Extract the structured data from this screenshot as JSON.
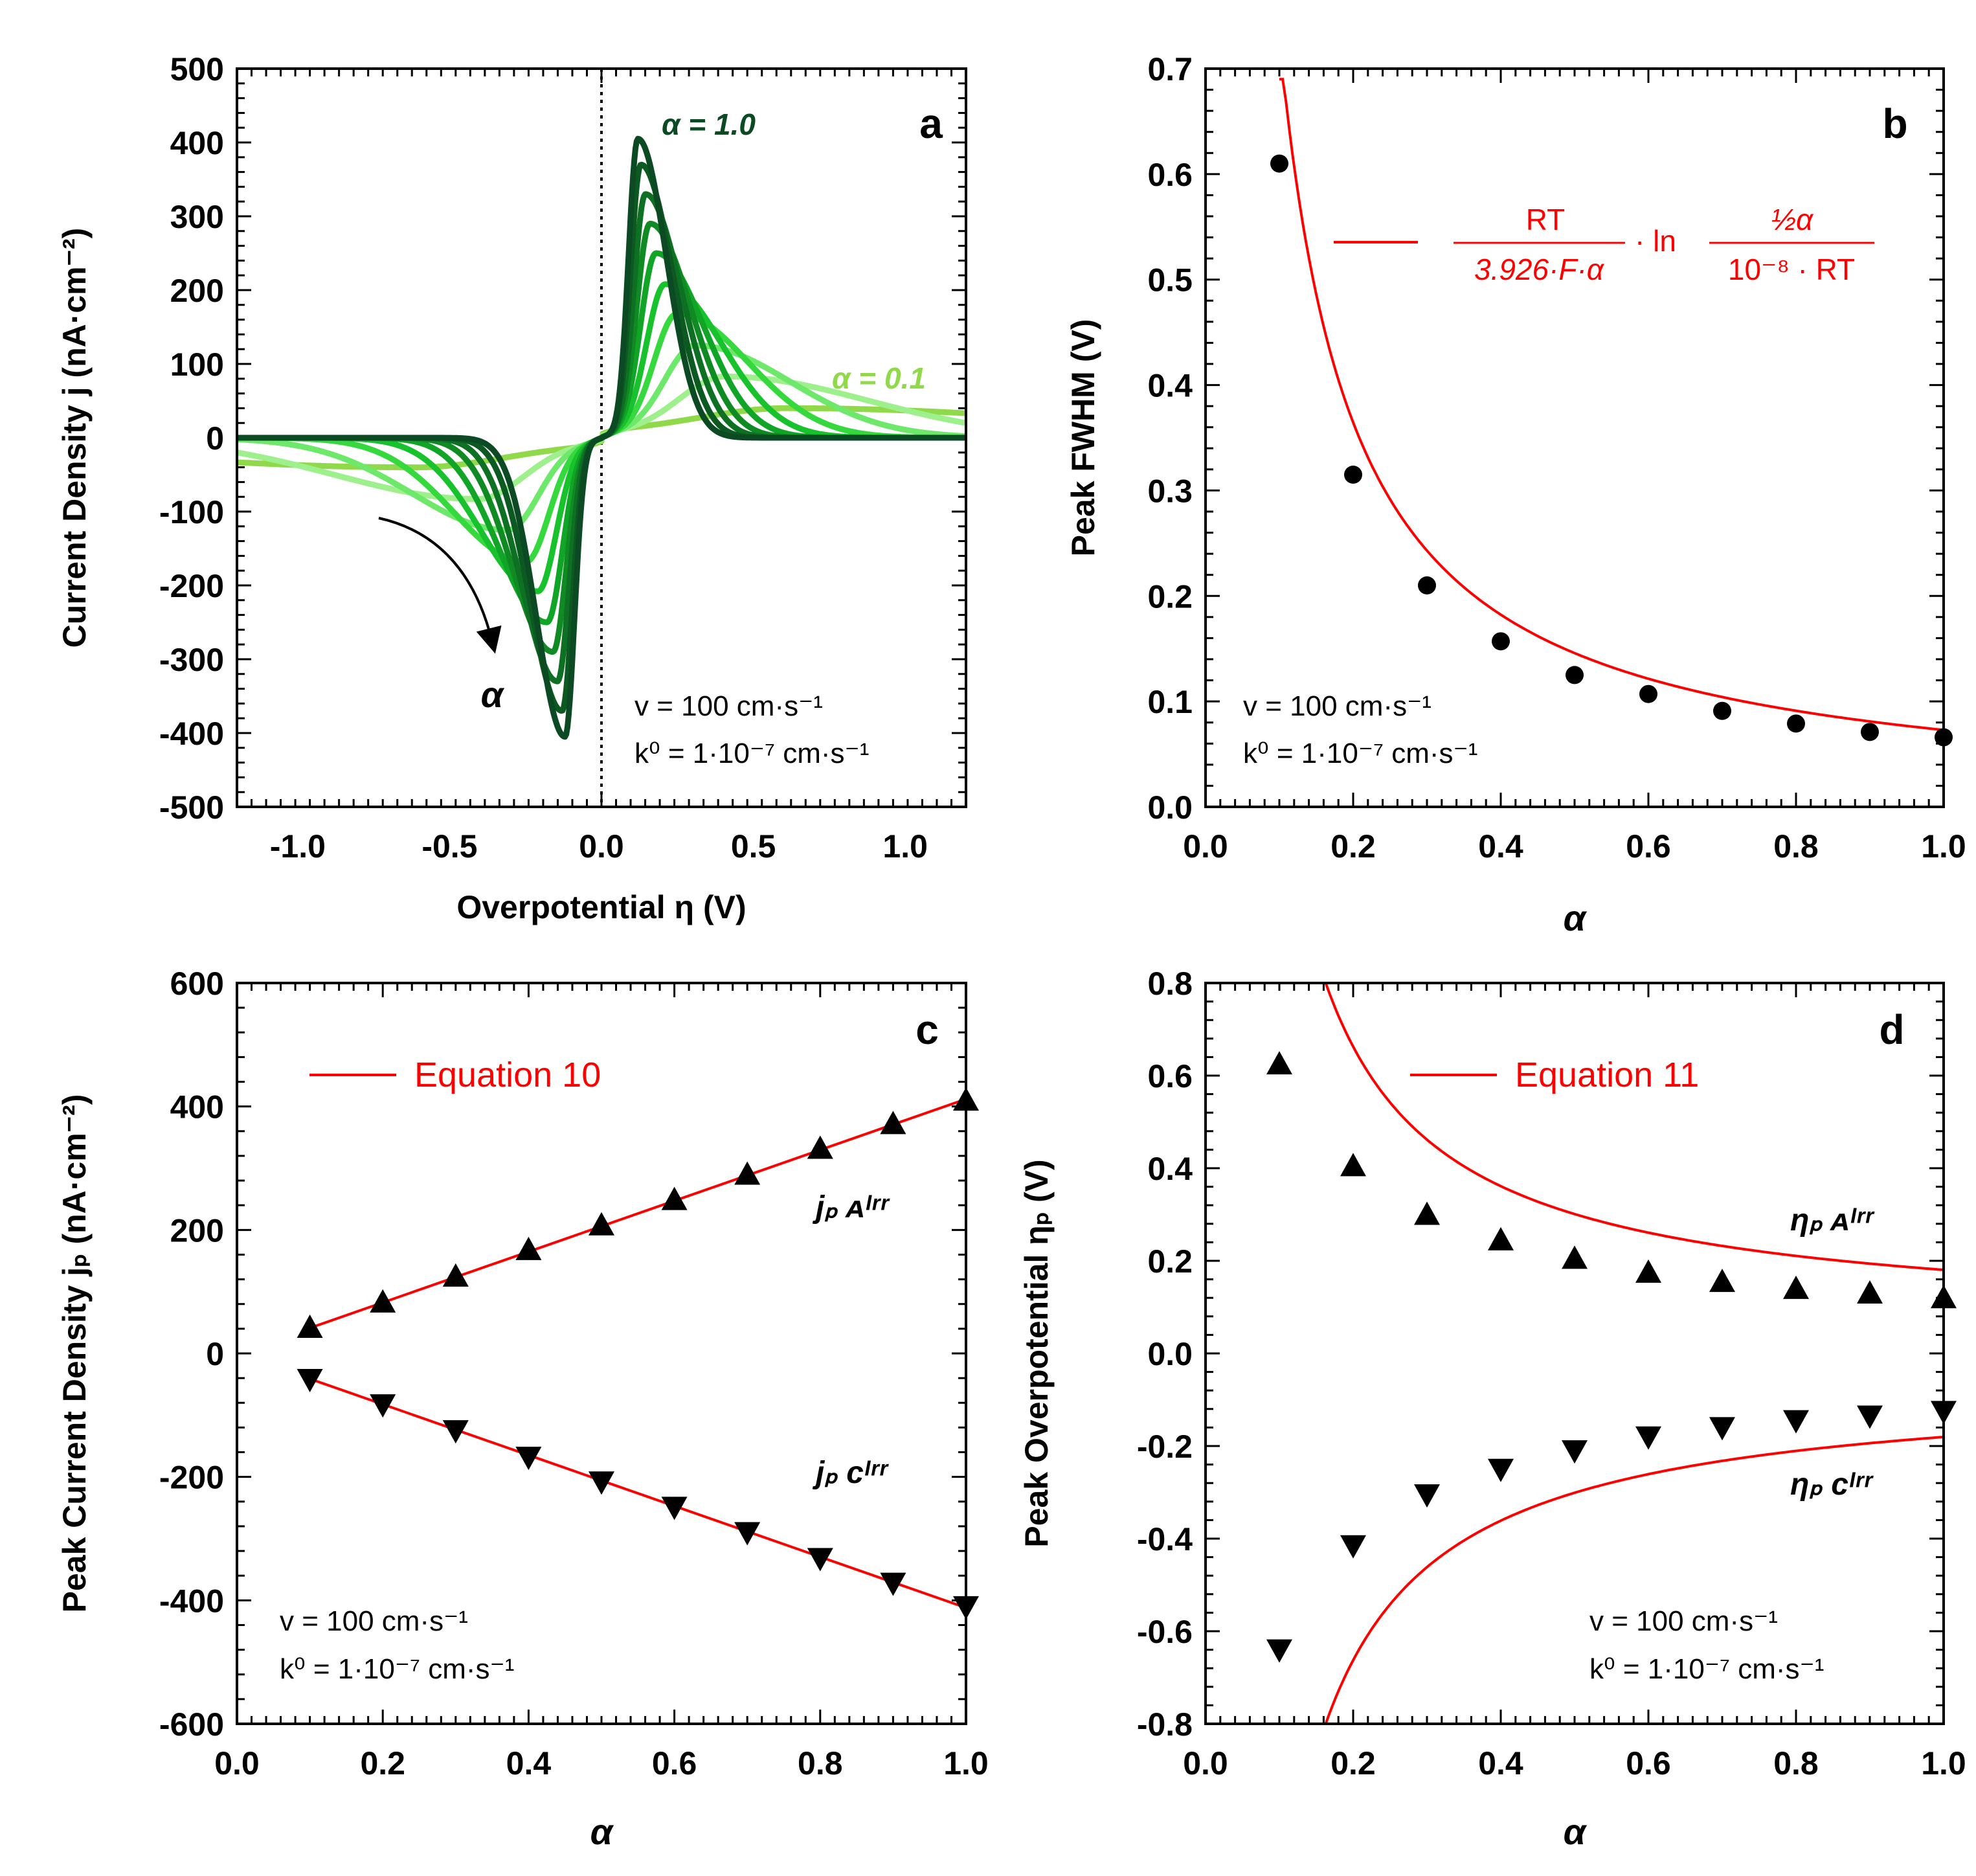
{
  "panels": {
    "a": {
      "letter": "a",
      "ylabel": "Current Density j (nA·cm⁻²)",
      "xlabel": "Overpotential η (V)",
      "note_v": "v = 100 cm·s⁻¹",
      "note_k": "k⁰ = 1·10⁻⁷  cm·s⁻¹",
      "label_hi": "α = 1.0",
      "label_lo": "α = 0.1",
      "arrow_label": "α",
      "hi_color": "#0b4a23",
      "lo_color": "#8fd94a"
    },
    "b": {
      "letter": "b",
      "ylabel": "Peak FWHM (V)",
      "xlabel": "α",
      "note_v": "v = 100 cm·s⁻¹",
      "note_k": "k⁰ = 1·10⁻⁷  cm·s⁻¹",
      "eq_num1": "RT",
      "eq_den1": "3.926·F·α",
      "eq_ln": "· ln",
      "eq_num2": "½α",
      "eq_den2": "10⁻⁸ · RT",
      "fit_color": "#ff0000"
    },
    "c": {
      "letter": "c",
      "ylabel": "Peak Current Density jₚ (nA·cm⁻²)",
      "xlabel": "α",
      "legend": "Equation 10",
      "series_a": "jₚ ᴀᴵʳʳ",
      "series_c": "jₚ ᴄᴵʳʳ",
      "note_v": "v = 100 cm·s⁻¹",
      "note_k": "k⁰ = 1·10⁻⁷  cm·s⁻¹"
    },
    "d": {
      "letter": "d",
      "ylabel": "Peak Overpotential ηₚ (V)",
      "xlabel": "α",
      "legend": "Equation 11",
      "series_a": "ηₚ ᴀᴵʳʳ",
      "series_c": "ηₚ ᴄᴵʳʳ",
      "note_v": "v = 100 cm·s⁻¹",
      "note_k": "k⁰ = 1·10⁻⁷  cm·s⁻¹"
    }
  },
  "chart_data": [
    {
      "panel": "a",
      "type": "line",
      "xlabel": "Overpotential η (V)",
      "ylabel": "Current Density j (nA·cm⁻²)",
      "xlim": [
        -1.2,
        1.2
      ],
      "ylim": [
        -500,
        500
      ],
      "xticks": [
        -1.0,
        -0.5,
        0.0,
        0.5,
        1.0
      ],
      "xtick_labels": [
        "-1.0",
        "-0.5",
        "0.0",
        "0.5",
        "1.0"
      ],
      "yticks": [
        500,
        400,
        300,
        200,
        100,
        0,
        -100,
        -200,
        -300,
        -400,
        -500
      ],
      "ytick_labels": [
        "500",
        "400",
        "300",
        "200",
        "100",
        "0",
        "-100",
        "-200",
        "-300",
        "-400",
        "-500"
      ],
      "reference_line_x": 0.0,
      "series": [
        {
          "alpha": 0.1,
          "peak_x_anodic": 0.63,
          "peak_j": 40,
          "color": "#8fd94a"
        },
        {
          "alpha": 0.2,
          "peak_x_anodic": 0.41,
          "peak_j": 83,
          "color": "#9ef08c"
        },
        {
          "alpha": 0.3,
          "peak_x_anodic": 0.31,
          "peak_j": 125,
          "color": "#6ee86a"
        },
        {
          "alpha": 0.4,
          "peak_x_anodic": 0.25,
          "peak_j": 168,
          "color": "#35d93e"
        },
        {
          "alpha": 0.5,
          "peak_x_anodic": 0.21,
          "peak_j": 208,
          "color": "#18c22c"
        },
        {
          "alpha": 0.6,
          "peak_x_anodic": 0.18,
          "peak_j": 250,
          "color": "#10a526"
        },
        {
          "alpha": 0.7,
          "peak_x_anodic": 0.16,
          "peak_j": 290,
          "color": "#108a23"
        },
        {
          "alpha": 0.8,
          "peak_x_anodic": 0.145,
          "peak_j": 330,
          "color": "#0e7022"
        },
        {
          "alpha": 0.9,
          "peak_x_anodic": 0.13,
          "peak_j": 370,
          "color": "#0c5a22"
        },
        {
          "alpha": 1.0,
          "peak_x_anodic": 0.12,
          "peak_j": 405,
          "color": "#0b4a23"
        }
      ]
    },
    {
      "panel": "b",
      "type": "scatter",
      "xlabel": "α",
      "ylabel": "Peak FWHM (V)",
      "xlim": [
        0.0,
        1.0
      ],
      "ylim": [
        0.0,
        0.7
      ],
      "xticks": [
        0.0,
        0.2,
        0.4,
        0.6,
        0.8,
        1.0
      ],
      "xtick_labels": [
        "0.0",
        "0.2",
        "0.4",
        "0.6",
        "0.8",
        "1.0"
      ],
      "yticks": [
        0.0,
        0.1,
        0.2,
        0.3,
        0.4,
        0.5,
        0.6,
        0.7
      ],
      "ytick_labels": [
        "0.0",
        "0.1",
        "0.2",
        "0.3",
        "0.4",
        "0.5",
        "0.6",
        "0.7"
      ],
      "x": [
        0.1,
        0.2,
        0.3,
        0.4,
        0.5,
        0.6,
        0.7,
        0.8,
        0.9,
        1.0
      ],
      "y": [
        0.61,
        0.315,
        0.21,
        0.157,
        0.125,
        0.107,
        0.091,
        0.079,
        0.071,
        0.066
      ],
      "fit_constant": 0.0729
    },
    {
      "panel": "c",
      "type": "scatter",
      "xlabel": "α",
      "ylabel": "Peak Current Density jₚ (nA·cm⁻²)",
      "xlim": [
        0.0,
        1.0
      ],
      "ylim": [
        -600,
        600
      ],
      "xticks": [
        0.0,
        0.2,
        0.4,
        0.6,
        0.8,
        1.0
      ],
      "xtick_labels": [
        "0.0",
        "0.2",
        "0.4",
        "0.6",
        "0.8",
        "1.0"
      ],
      "yticks": [
        600,
        400,
        200,
        0,
        -200,
        -400,
        -600
      ],
      "ytick_labels": [
        "600",
        "400",
        "200",
        "0",
        "-200",
        "-400",
        "-600"
      ],
      "x": [
        0.1,
        0.2,
        0.3,
        0.4,
        0.5,
        0.6,
        0.7,
        0.8,
        0.9,
        1.0
      ],
      "series": [
        {
          "name": "anodic",
          "values": [
            42,
            83,
            125,
            168,
            208,
            249,
            290,
            332,
            372,
            410
          ]
        },
        {
          "name": "cathodic",
          "values": [
            -42,
            -83,
            -125,
            -168,
            -208,
            -249,
            -290,
            -332,
            -372,
            -410
          ]
        }
      ],
      "fit_slope": 412
    },
    {
      "panel": "d",
      "type": "scatter",
      "xlabel": "α",
      "ylabel": "Peak Overpotential ηₚ (V)",
      "xlim": [
        0.0,
        1.0
      ],
      "ylim": [
        -0.8,
        0.8
      ],
      "xticks": [
        0.0,
        0.2,
        0.4,
        0.6,
        0.8,
        1.0
      ],
      "xtick_labels": [
        "0.0",
        "0.2",
        "0.4",
        "0.6",
        "0.8",
        "1.0"
      ],
      "yticks": [
        0.8,
        0.6,
        0.4,
        0.2,
        0.0,
        -0.2,
        -0.4,
        -0.6,
        -0.8
      ],
      "ytick_labels": [
        "0.8",
        "0.6",
        "0.4",
        "0.2",
        "0.0",
        "-0.2",
        "-0.4",
        "-0.6",
        "-0.8"
      ],
      "x": [
        0.1,
        0.2,
        0.3,
        0.4,
        0.5,
        0.6,
        0.7,
        0.8,
        0.9,
        1.0
      ],
      "series": [
        {
          "name": "anodic",
          "values": [
            0.625,
            0.405,
            0.3,
            0.245,
            0.205,
            0.175,
            0.155,
            0.14,
            0.13,
            0.12
          ]
        },
        {
          "name": "cathodic",
          "values": [
            -0.64,
            -0.415,
            -0.305,
            -0.25,
            -0.21,
            -0.18,
            -0.16,
            -0.145,
            -0.135,
            -0.125
          ]
        }
      ],
      "fit_constant": 0.1205
    }
  ]
}
